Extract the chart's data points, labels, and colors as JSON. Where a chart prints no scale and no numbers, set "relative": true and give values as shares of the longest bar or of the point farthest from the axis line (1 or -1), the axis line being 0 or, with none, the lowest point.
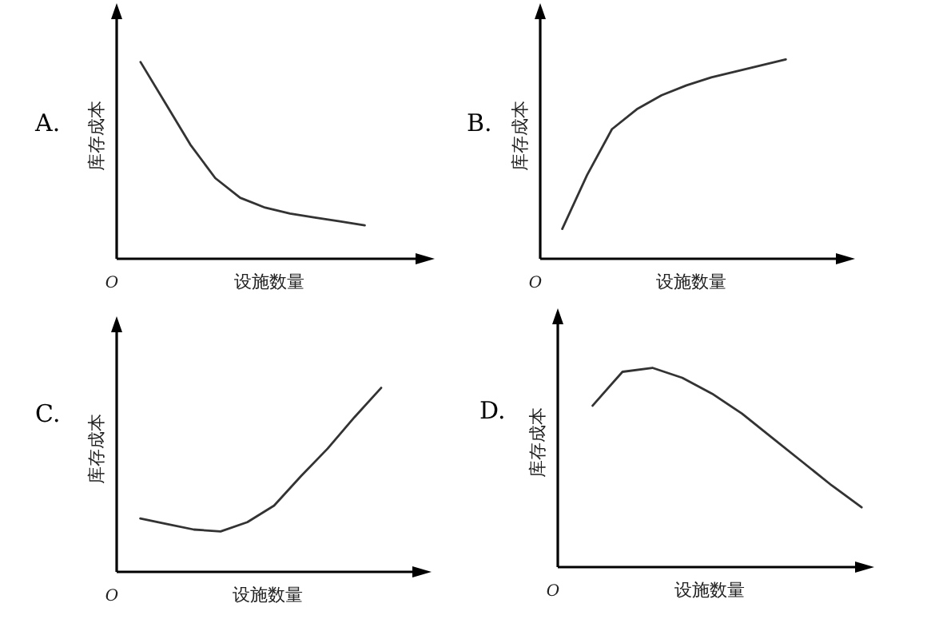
{
  "chart_data": [
    {
      "type": "line",
      "title": "A.",
      "xlabel": "设施数量",
      "ylabel": "库存成本",
      "annotations": [
        "O"
      ],
      "relative": true,
      "categories": [
        null,
        null,
        null,
        null,
        null,
        null,
        null,
        null,
        null,
        null
      ],
      "series": [
        {
          "color": "#333333",
          "values": [
            1,
            0.79,
            0.58,
            0.41,
            0.31,
            0.26,
            0.23,
            0.21,
            0.19,
            0.17
          ]
        }
      ]
    },
    {
      "type": "line",
      "title": "B.",
      "xlabel": "设施数量",
      "ylabel": "库存成本",
      "annotations": [
        "O"
      ],
      "relative": true,
      "categories": [
        null,
        null,
        null,
        null,
        null,
        null,
        null,
        null,
        null,
        null
      ],
      "series": [
        {
          "color": "#333333",
          "values": [
            0.15,
            0.42,
            0.65,
            0.75,
            0.82,
            0.87,
            0.91,
            0.94,
            0.97,
            1
          ]
        }
      ]
    },
    {
      "type": "line",
      "title": "C.",
      "xlabel": "设施数量",
      "ylabel": "库存成本",
      "annotations": [
        "O"
      ],
      "relative": true,
      "categories": [
        null,
        null,
        null,
        null,
        null,
        null,
        null,
        null,
        null,
        null
      ],
      "series": [
        {
          "color": "#333333",
          "values": [
            0.29,
            0.26,
            0.23,
            0.22,
            0.27,
            0.36,
            0.52,
            0.67,
            0.84,
            1
          ]
        }
      ]
    },
    {
      "type": "line",
      "title": "D.",
      "xlabel": "设施数量",
      "ylabel": "库存成本",
      "annotations": [
        "O"
      ],
      "relative": true,
      "categories": [
        null,
        null,
        null,
        null,
        null,
        null,
        null,
        null,
        null,
        null
      ],
      "series": [
        {
          "color": "#333333",
          "values": [
            0.81,
            0.98,
            1,
            0.95,
            0.87,
            0.77,
            0.65,
            0.53,
            0.41,
            0.3
          ]
        }
      ]
    }
  ]
}
